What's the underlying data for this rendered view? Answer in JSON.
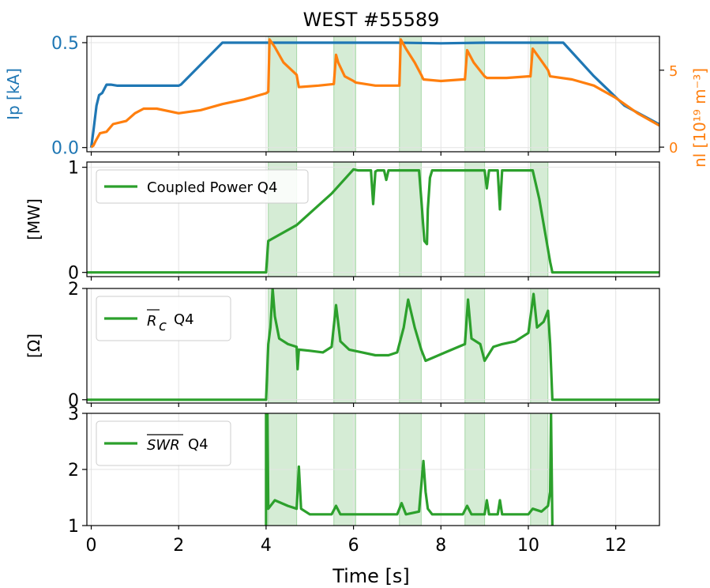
{
  "figure": {
    "title": "WEST #55589",
    "xlabel": "Time [s]"
  },
  "colors": {
    "ip": "#1f77b4",
    "nl": "#ff7f0e",
    "green": "#2ca02c",
    "shade": "#2ca02c"
  },
  "chart_data": [
    {
      "type": "line",
      "xlim": [
        -0.1,
        13.0
      ],
      "ylim": [
        -0.02,
        0.53
      ],
      "ylabel": "Ip [kA]",
      "ylabel_right": "nl [10¹⁹ m⁻³]",
      "ylim_right": [
        -0.3,
        7.2
      ],
      "yticks": [
        0.0,
        0.5
      ],
      "ytick_labels": [
        "0.0",
        "0.5"
      ],
      "yticks_right": [
        0,
        5
      ],
      "ytick_labels_right": [
        "0",
        "5"
      ],
      "grid": true,
      "shaded_intervals": [
        [
          4.05,
          4.7
        ],
        [
          5.55,
          6.05
        ],
        [
          7.05,
          7.55
        ],
        [
          8.55,
          9.0
        ],
        [
          10.05,
          10.45
        ]
      ],
      "series": [
        {
          "name": "Ip",
          "axis": "left",
          "color": "#1f77b4",
          "x": [
            0.0,
            0.05,
            0.12,
            0.18,
            0.25,
            0.35,
            0.45,
            0.6,
            1.0,
            1.5,
            2.0,
            2.05,
            3.0,
            3.2,
            4.0,
            5.0,
            6.0,
            7.0,
            8.0,
            9.0,
            10.0,
            10.8,
            11.5,
            12.2,
            13.0
          ],
          "y": [
            0.0,
            0.08,
            0.2,
            0.25,
            0.26,
            0.3,
            0.3,
            0.295,
            0.295,
            0.295,
            0.295,
            0.3,
            0.5,
            0.5,
            0.5,
            0.5,
            0.5,
            0.5,
            0.497,
            0.5,
            0.5,
            0.5,
            0.34,
            0.2,
            0.11
          ]
        },
        {
          "name": "nl",
          "axis": "right",
          "color": "#ff7f0e",
          "x": [
            0.0,
            0.05,
            0.1,
            0.2,
            0.35,
            0.5,
            0.8,
            1.0,
            1.2,
            1.5,
            2.0,
            2.5,
            3.0,
            3.5,
            4.0,
            4.05,
            4.08,
            4.2,
            4.4,
            4.7,
            4.75,
            5.2,
            5.55,
            5.6,
            5.65,
            5.8,
            6.0,
            6.05,
            6.5,
            7.0,
            7.05,
            7.08,
            7.2,
            7.4,
            7.55,
            7.6,
            8.0,
            8.5,
            8.55,
            8.6,
            8.75,
            9.0,
            9.05,
            9.5,
            10.0,
            10.05,
            10.1,
            10.3,
            10.45,
            10.5,
            11.0,
            11.5,
            12.0,
            12.5,
            13.0
          ],
          "y": [
            0.0,
            0.1,
            0.4,
            0.9,
            1.0,
            1.5,
            1.7,
            2.2,
            2.5,
            2.5,
            2.2,
            2.4,
            2.8,
            3.1,
            3.5,
            3.6,
            7.0,
            6.5,
            5.5,
            4.7,
            3.9,
            4.0,
            4.1,
            6.0,
            5.5,
            4.6,
            4.3,
            4.2,
            4.0,
            4.0,
            4.0,
            7.0,
            6.4,
            5.5,
            4.7,
            4.4,
            4.3,
            4.4,
            4.4,
            6.3,
            5.5,
            4.6,
            4.5,
            4.5,
            4.6,
            4.6,
            6.4,
            5.6,
            5.0,
            4.6,
            4.4,
            4.0,
            3.2,
            2.2,
            1.4
          ]
        }
      ]
    },
    {
      "type": "line",
      "xlim": [
        -0.1,
        13.0
      ],
      "ylim": [
        -0.04,
        1.05
      ],
      "ylabel": "[MW]",
      "yticks": [
        0,
        1
      ],
      "ytick_labels": [
        "0",
        "1"
      ],
      "grid": true,
      "shaded_intervals": [
        [
          4.05,
          4.7
        ],
        [
          5.55,
          6.05
        ],
        [
          7.05,
          7.55
        ],
        [
          8.55,
          9.0
        ],
        [
          10.05,
          10.45
        ]
      ],
      "legend": {
        "label": "Coupled Power Q4",
        "placement": "upper-left"
      },
      "series": [
        {
          "name": "Coupled Power Q4",
          "color": "#2ca02c",
          "x": [
            -0.1,
            4.0,
            4.05,
            4.1,
            4.7,
            5.5,
            6.0,
            6.1,
            6.4,
            6.45,
            6.5,
            6.55,
            6.7,
            6.75,
            6.8,
            7.0,
            7.5,
            7.55,
            7.62,
            7.68,
            7.7,
            7.75,
            7.8,
            8.0,
            8.5,
            9.0,
            9.05,
            9.1,
            9.3,
            9.35,
            9.4,
            10.0,
            10.1,
            10.25,
            10.5,
            10.55,
            13.0
          ],
          "y": [
            0.0,
            0.0,
            0.3,
            0.31,
            0.45,
            0.75,
            0.98,
            0.97,
            0.97,
            0.65,
            0.96,
            0.97,
            0.97,
            0.88,
            0.97,
            0.97,
            0.97,
            0.7,
            0.3,
            0.27,
            0.6,
            0.9,
            0.97,
            0.97,
            0.97,
            0.97,
            0.8,
            0.97,
            0.97,
            0.6,
            0.97,
            0.97,
            0.97,
            0.7,
            0.1,
            0.0,
            0.0
          ]
        }
      ]
    },
    {
      "type": "line",
      "xlim": [
        -0.1,
        13.0
      ],
      "ylim": [
        -0.06,
        2.0
      ],
      "ylabel": "[Ω]",
      "yticks": [
        0,
        2
      ],
      "ytick_labels": [
        "0",
        "2"
      ],
      "grid": true,
      "shaded_intervals": [
        [
          4.05,
          4.7
        ],
        [
          5.55,
          6.05
        ],
        [
          7.05,
          7.55
        ],
        [
          8.55,
          9.0
        ],
        [
          10.05,
          10.45
        ]
      ],
      "legend": {
        "label": "Q4",
        "placement": "upper-left"
      },
      "series": [
        {
          "name": "Q4",
          "color": "#2ca02c",
          "x": [
            -0.1,
            4.0,
            4.05,
            4.1,
            4.15,
            4.2,
            4.3,
            4.5,
            4.7,
            4.72,
            4.75,
            5.0,
            5.3,
            5.5,
            5.6,
            5.7,
            5.9,
            6.2,
            6.5,
            6.8,
            7.0,
            7.15,
            7.25,
            7.4,
            7.55,
            7.65,
            7.8,
            8.1,
            8.4,
            8.55,
            8.62,
            8.7,
            8.9,
            9.0,
            9.2,
            9.4,
            9.7,
            10.0,
            10.12,
            10.2,
            10.35,
            10.45,
            10.5,
            10.55,
            13.0
          ],
          "y": [
            0.0,
            0.0,
            1.0,
            1.3,
            2.0,
            1.5,
            1.1,
            1.0,
            0.95,
            0.55,
            0.9,
            0.88,
            0.85,
            0.95,
            1.7,
            1.05,
            0.9,
            0.85,
            0.8,
            0.8,
            0.85,
            1.3,
            1.8,
            1.3,
            0.9,
            0.7,
            0.75,
            0.85,
            0.95,
            1.0,
            1.8,
            1.1,
            1.0,
            0.7,
            0.95,
            1.0,
            1.05,
            1.2,
            1.9,
            1.3,
            1.4,
            1.6,
            1.0,
            0.0,
            0.0
          ]
        }
      ]
    },
    {
      "type": "line",
      "xlim": [
        -0.1,
        13.0
      ],
      "ylim": [
        1.0,
        3.0
      ],
      "ylabel": "",
      "yticks": [
        1,
        2,
        3
      ],
      "ytick_labels": [
        "1",
        "2",
        "3"
      ],
      "xticks": [
        0,
        2,
        4,
        6,
        8,
        10,
        12
      ],
      "xtick_labels": [
        "0",
        "2",
        "4",
        "6",
        "8",
        "10",
        "12"
      ],
      "grid": true,
      "shaded_intervals": [
        [
          4.05,
          4.7
        ],
        [
          5.55,
          6.05
        ],
        [
          7.05,
          7.55
        ],
        [
          8.55,
          9.0
        ],
        [
          10.05,
          10.45
        ]
      ],
      "legend": {
        "label": "Q4",
        "placement": "upper-left"
      },
      "series": [
        {
          "name": "Q4",
          "color": "#2ca02c",
          "x": [
            4.0,
            4.0,
            4.03,
            4.05,
            4.2,
            4.5,
            4.7,
            4.75,
            4.8,
            5.0,
            5.5,
            5.6,
            5.7,
            6.0,
            6.5,
            7.0,
            7.1,
            7.2,
            7.5,
            7.6,
            7.65,
            7.7,
            7.8,
            8.0,
            8.5,
            8.6,
            8.7,
            9.0,
            9.05,
            9.1,
            9.3,
            9.35,
            9.4,
            9.5,
            10.0,
            10.1,
            10.3,
            10.45,
            10.5,
            10.52,
            10.55
          ],
          "y": [
            1.0,
            3.0,
            3.0,
            1.3,
            1.45,
            1.35,
            1.3,
            2.05,
            1.3,
            1.2,
            1.2,
            1.35,
            1.2,
            1.2,
            1.2,
            1.2,
            1.4,
            1.2,
            1.25,
            2.15,
            1.6,
            1.3,
            1.2,
            1.2,
            1.2,
            1.35,
            1.2,
            1.2,
            1.45,
            1.2,
            1.2,
            1.45,
            1.2,
            1.2,
            1.2,
            1.3,
            1.25,
            1.35,
            1.6,
            3.0,
            1.0
          ]
        }
      ]
    }
  ]
}
